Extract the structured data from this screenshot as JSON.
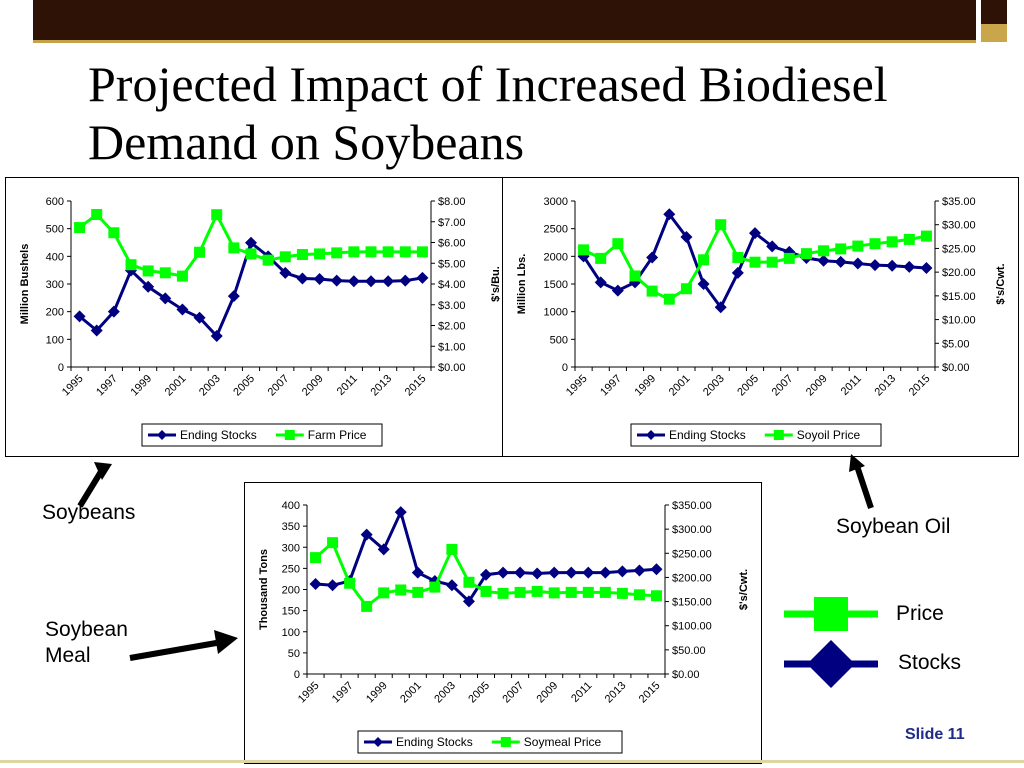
{
  "slide": {
    "title": "Projected Impact of Increased Biodiesel Demand on Soybeans",
    "slide_number": "Slide 11"
  },
  "labels": {
    "soybeans": "Soybeans",
    "soybean_oil": "Soybean Oil",
    "soybean_meal": "Soybean Meal"
  },
  "legend_key": {
    "price": "Price",
    "stocks": "Stocks",
    "price_color": "#00ff00",
    "stocks_color": "#000080"
  },
  "chart_data": [
    {
      "type": "line",
      "ylabel": "Million Bushels",
      "y2label": "$'s/Bu.",
      "ylim": [
        0,
        600
      ],
      "yticks": [
        "0",
        "100",
        "200",
        "300",
        "400",
        "500",
        "600"
      ],
      "y2lim": [
        0,
        8
      ],
      "y2ticks": [
        "$0.00",
        "$1.00",
        "$2.00",
        "$3.00",
        "$4.00",
        "$5.00",
        "$6.00",
        "$7.00",
        "$8.00"
      ],
      "x": [
        1995,
        1996,
        1997,
        1998,
        1999,
        2000,
        2001,
        2002,
        2003,
        2004,
        2005,
        2006,
        2007,
        2008,
        2009,
        2010,
        2011,
        2012,
        2013,
        2014,
        2015
      ],
      "xticks": [
        "1995",
        "1997",
        "1999",
        "2001",
        "2003",
        "2005",
        "2007",
        "2009",
        "2011",
        "2013",
        "2015"
      ],
      "series": [
        {
          "name": "Ending Stocks",
          "axis": "left",
          "color": "#000080",
          "marker": "diamond",
          "values": [
            183,
            132,
            200,
            349,
            290,
            248,
            208,
            178,
            112,
            256,
            449,
            400,
            340,
            320,
            318,
            312,
            310,
            310,
            310,
            312,
            322
          ]
        },
        {
          "name": "Farm Price",
          "axis": "right",
          "color": "#00ff00",
          "marker": "square",
          "values": [
            6.72,
            7.35,
            6.47,
            4.93,
            4.63,
            4.54,
            4.38,
            5.53,
            7.34,
            5.74,
            5.45,
            5.15,
            5.31,
            5.42,
            5.45,
            5.5,
            5.55,
            5.55,
            5.55,
            5.55,
            5.55
          ]
        }
      ],
      "grid": false,
      "legend_position": "bottom"
    },
    {
      "type": "line",
      "ylabel": "Million Lbs.",
      "y2label": "$'s/Cwt.",
      "ylim": [
        0,
        3000
      ],
      "yticks": [
        "0",
        "500",
        "1000",
        "1500",
        "2000",
        "2500",
        "3000"
      ],
      "y2lim": [
        0,
        35
      ],
      "y2ticks": [
        "$0.00",
        "$5.00",
        "$10.00",
        "$15.00",
        "$20.00",
        "$25.00",
        "$30.00",
        "$35.00"
      ],
      "x": [
        1995,
        1996,
        1997,
        1998,
        1999,
        2000,
        2001,
        2002,
        2003,
        2004,
        2005,
        2006,
        2007,
        2008,
        2009,
        2010,
        2011,
        2012,
        2013,
        2014,
        2015
      ],
      "xticks": [
        "1995",
        "1997",
        "1999",
        "2001",
        "2003",
        "2005",
        "2007",
        "2009",
        "2011",
        "2013",
        "2015"
      ],
      "series": [
        {
          "name": "Ending Stocks",
          "axis": "left",
          "color": "#000080",
          "marker": "diamond",
          "values": [
            2000,
            1530,
            1380,
            1530,
            1980,
            2760,
            2350,
            1500,
            1080,
            1700,
            2420,
            2180,
            2080,
            1970,
            1920,
            1900,
            1870,
            1840,
            1830,
            1810,
            1790
          ]
        },
        {
          "name": "Soyoil Price",
          "axis": "right",
          "color": "#00ff00",
          "marker": "square",
          "values": [
            24.7,
            22.9,
            26,
            19.2,
            16,
            14.3,
            16.5,
            22.6,
            30,
            23.1,
            22.1,
            22.1,
            22.9,
            23.9,
            24.5,
            24.9,
            25.5,
            26,
            26.4,
            26.9,
            27.6
          ]
        }
      ],
      "grid": false,
      "legend_position": "bottom"
    },
    {
      "type": "line",
      "ylabel": "Thousand Tons",
      "y2label": "$'s/Cwt.",
      "ylim": [
        0,
        400
      ],
      "yticks": [
        "0",
        "50",
        "100",
        "150",
        "200",
        "250",
        "300",
        "350",
        "400"
      ],
      "y2lim": [
        0,
        350
      ],
      "y2ticks": [
        "$0.00",
        "$50.00",
        "$100.00",
        "$150.00",
        "$200.00",
        "$250.00",
        "$300.00",
        "$350.00"
      ],
      "x": [
        1995,
        1996,
        1997,
        1998,
        1999,
        2000,
        2001,
        2002,
        2003,
        2004,
        2005,
        2006,
        2007,
        2008,
        2009,
        2010,
        2011,
        2012,
        2013,
        2014,
        2015
      ],
      "xticks": [
        "1995",
        "1997",
        "1999",
        "2001",
        "2003",
        "2005",
        "2007",
        "2009",
        "2011",
        "2013",
        "2015"
      ],
      "series": [
        {
          "name": "Ending Stocks",
          "axis": "left",
          "color": "#000080",
          "marker": "diamond",
          "values": [
            213,
            210,
            220,
            330,
            295,
            383,
            240,
            220,
            210,
            172,
            235,
            240,
            240,
            238,
            240,
            240,
            240,
            240,
            243,
            245,
            248
          ]
        },
        {
          "name": "Soymeal Price",
          "axis": "right",
          "color": "#00ff00",
          "marker": "square",
          "values": [
            241,
            272,
            188,
            140,
            168,
            174,
            169,
            180,
            258,
            190,
            171,
            167,
            169,
            171,
            168,
            169,
            169,
            169,
            167,
            164,
            162
          ]
        }
      ],
      "grid": false,
      "legend_position": "bottom"
    }
  ]
}
